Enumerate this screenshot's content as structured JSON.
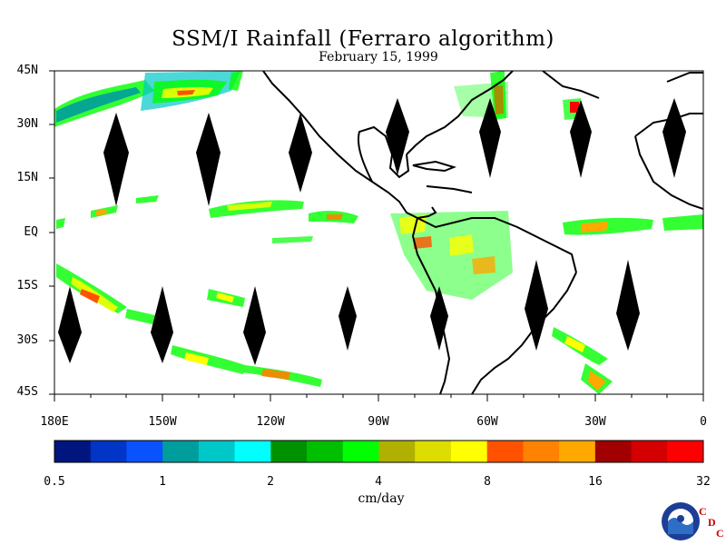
{
  "title": "SSM/I Rainfall (Ferraro algorithm)",
  "date": "February 15, 1999",
  "lat_labels": [
    "45N",
    "30N",
    "15N",
    "EQ",
    "15S",
    "30S",
    "45S"
  ],
  "lon_labels": [
    "180E",
    "150W",
    "120W",
    "90W",
    "60W",
    "30W",
    "0"
  ],
  "colorbar": {
    "colors": [
      "#00157d",
      "#0035c5",
      "#0b52ff",
      "#009d9d",
      "#00c8c8",
      "#00ffff",
      "#009100",
      "#00bf00",
      "#00ff00",
      "#b0b000",
      "#dddd00",
      "#ffff00",
      "#ff5200",
      "#ff8200",
      "#ffa800",
      "#a00000",
      "#d40000",
      "#ff0000"
    ],
    "tick_labels": [
      "0.5",
      "1",
      "2",
      "4",
      "8",
      "16",
      "32"
    ],
    "units": "cm/day"
  },
  "logo": {
    "name": "NOAA",
    "cdc_letters": [
      "C",
      "D",
      "C"
    ]
  },
  "colors": {
    "land_outline": "#000000",
    "diamonds": "#000000"
  }
}
